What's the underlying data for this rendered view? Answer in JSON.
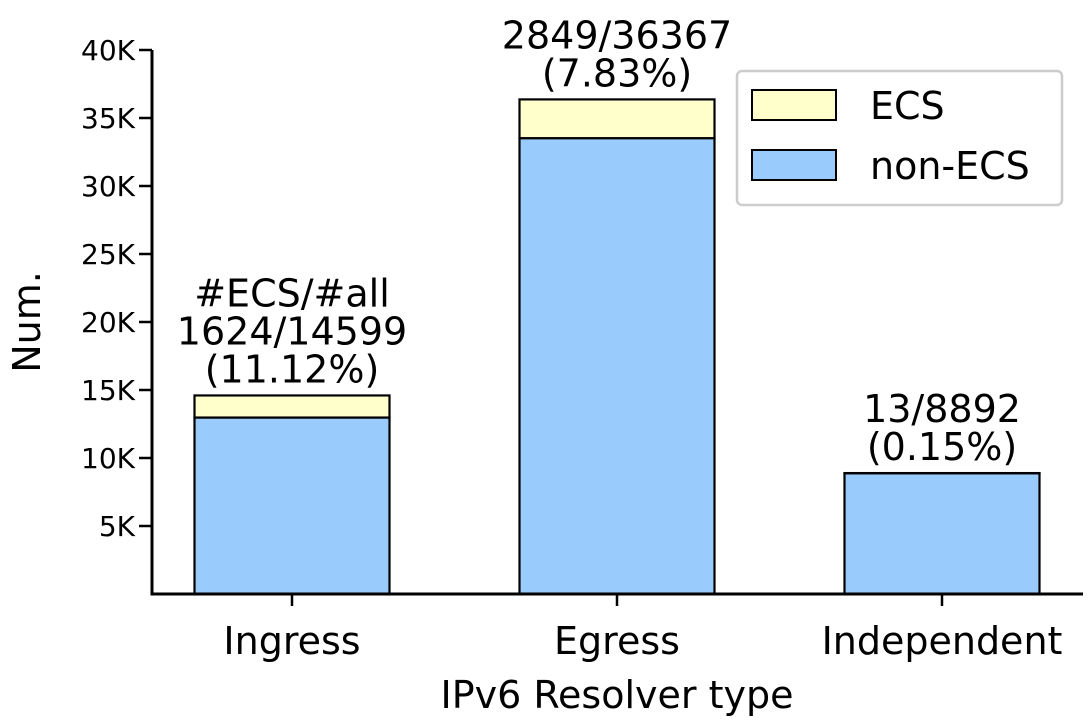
{
  "chart_data": {
    "type": "bar",
    "stacked": true,
    "categories": [
      "Ingress",
      "Egress",
      "Independent"
    ],
    "series": [
      {
        "name": "non-ECS",
        "values": [
          12975,
          33518,
          8879
        ],
        "color": "#9acbfd"
      },
      {
        "name": "ECS",
        "values": [
          1624,
          2849,
          13
        ],
        "color": "#ffffcc"
      }
    ],
    "totals": [
      14599,
      36367,
      8892
    ],
    "bar_labels": [
      [
        "#ECS/#all",
        "1624/14599",
        "(11.12%)"
      ],
      [
        "2849/36367",
        "(7.83%)"
      ],
      [
        "13/8892",
        "(0.15%)"
      ]
    ],
    "xlabel": "IPv6 Resolver type",
    "ylabel": "Num.",
    "ylim": [
      0,
      40000
    ],
    "yticks": [
      5000,
      10000,
      15000,
      20000,
      25000,
      30000,
      35000,
      40000
    ],
    "ytick_labels": [
      "5K",
      "10K",
      "15K",
      "20K",
      "25K",
      "30K",
      "35K",
      "40K"
    ],
    "legend": {
      "position": "top-right",
      "entries": [
        "ECS",
        "non-ECS"
      ]
    },
    "grid": false
  }
}
